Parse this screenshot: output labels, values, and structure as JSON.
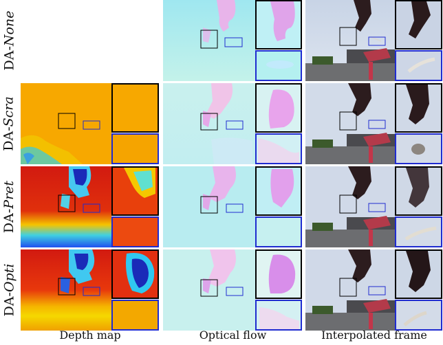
{
  "rows": [
    {
      "prefix": "DA-",
      "method": "None"
    },
    {
      "prefix": "DA-",
      "method": "Scra"
    },
    {
      "prefix": "DA-",
      "method": "Pret"
    },
    {
      "prefix": "DA-",
      "method": "Opti"
    }
  ],
  "columns": [
    "Depth map",
    "Optical flow",
    "Interpolated frame"
  ],
  "colors": {
    "zoom_black": "#000000",
    "zoom_blue": "#1f2bd0",
    "depth_orange": "#f7a800",
    "depth_red": "#d81a10",
    "depth_blue": "#1020c0",
    "flow_cyan": "#a8eee8",
    "flow_pink": "#e8a8e8"
  }
}
